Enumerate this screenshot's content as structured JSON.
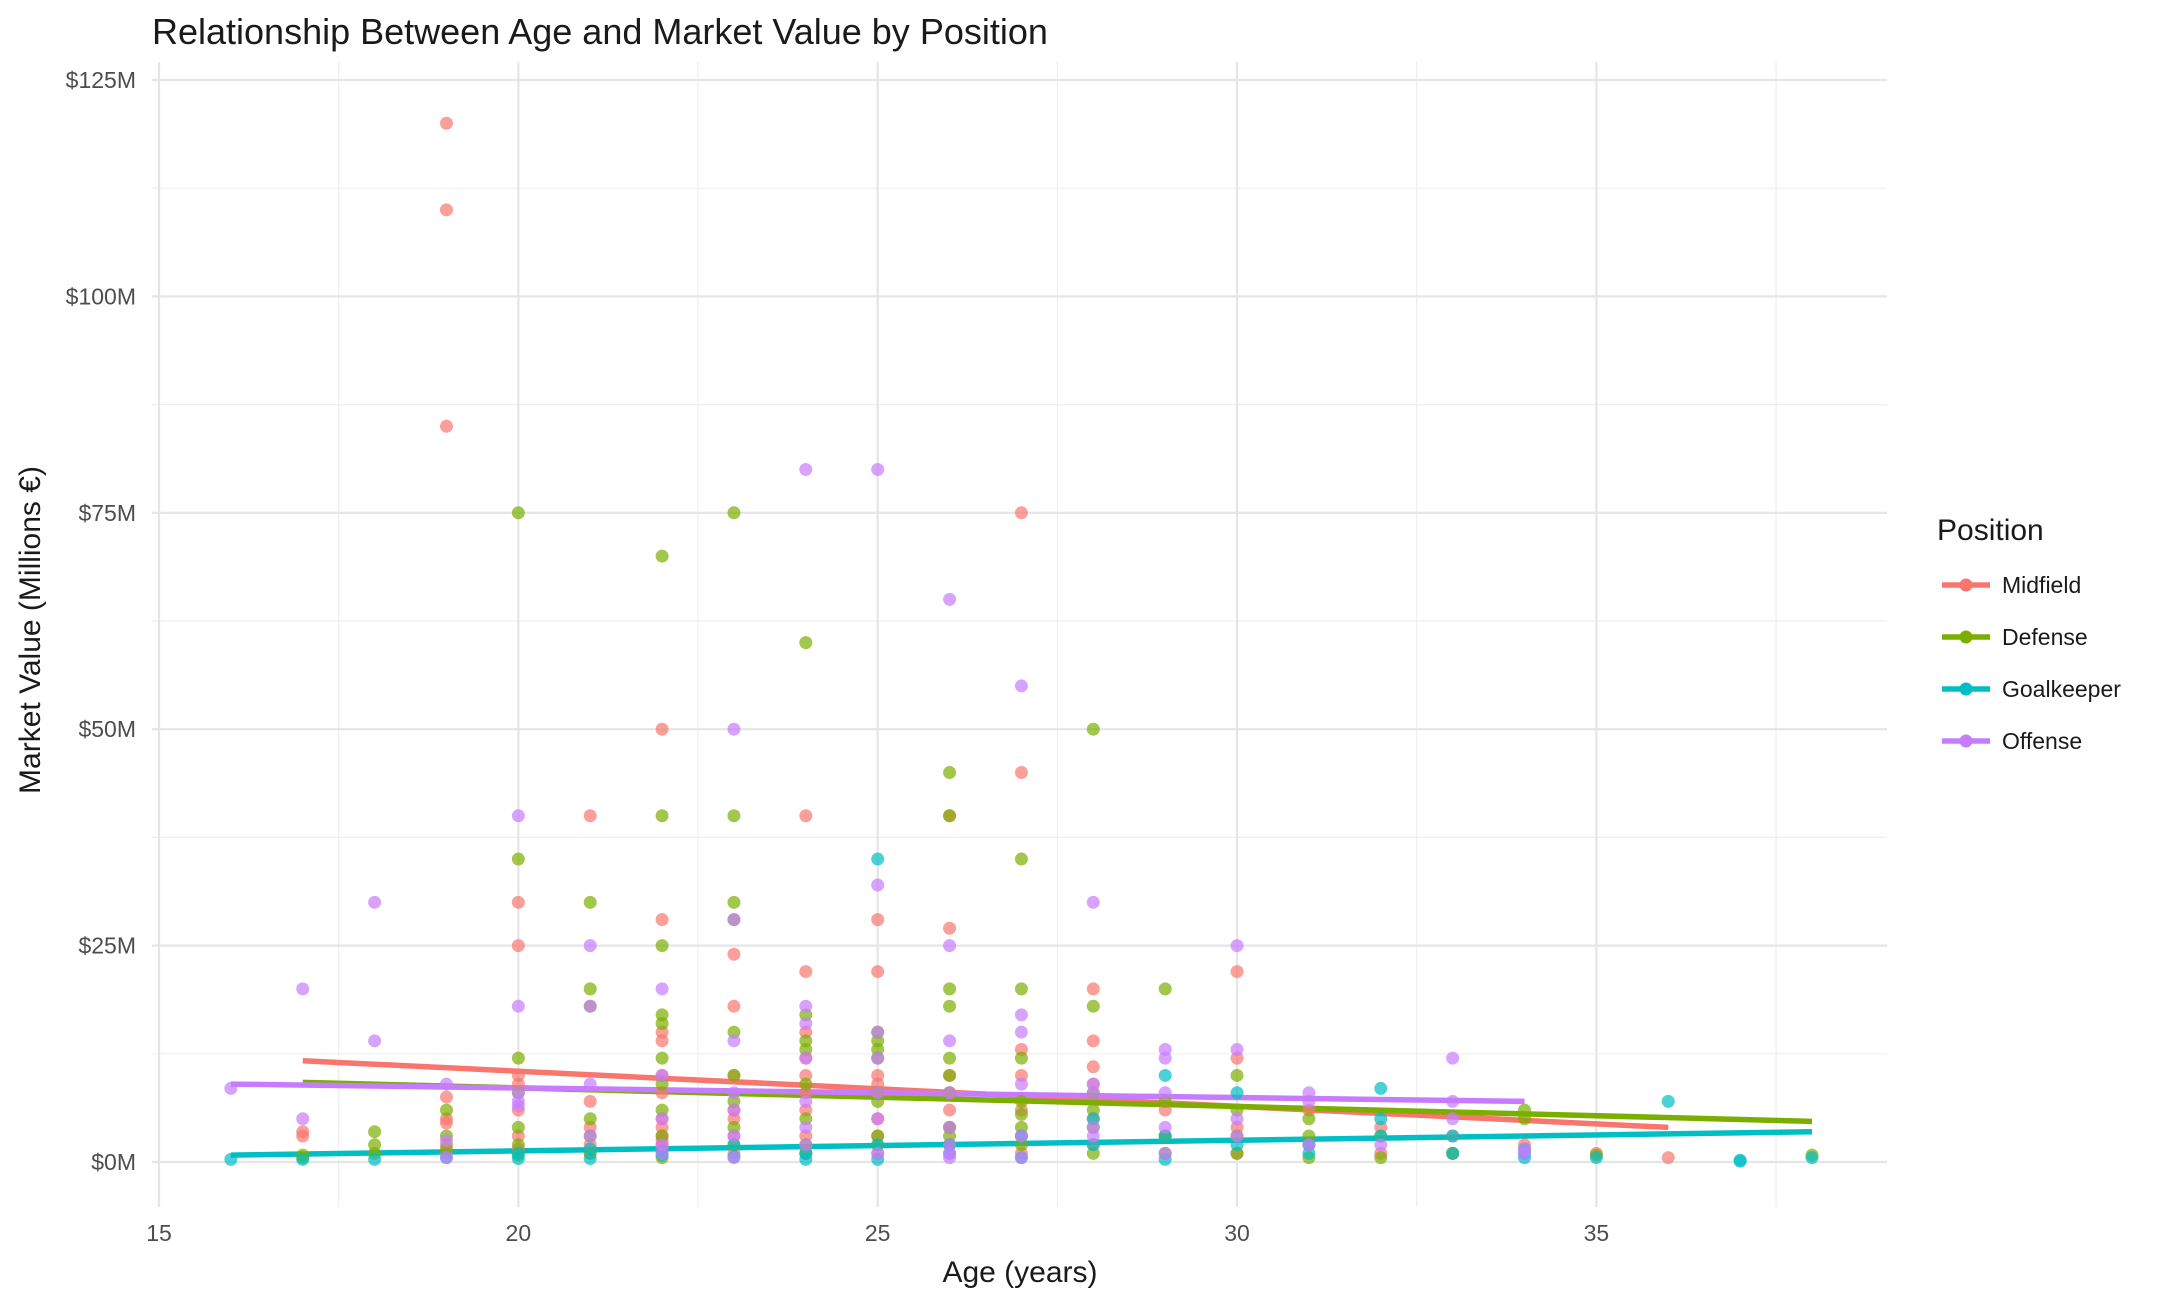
{
  "chart_data": {
    "type": "scatter",
    "title": "Relationship Between Age and Market Value by Position",
    "xlabel": "Age (years)",
    "ylabel": "Market Value (Millions €)",
    "xlim": [
      15,
      39
    ],
    "ylim": [
      -5.5,
      127
    ],
    "x_ticks": [
      15,
      20,
      25,
      30,
      35
    ],
    "x_tick_labels": [
      "15",
      "20",
      "25",
      "30",
      "35"
    ],
    "y_ticks": [
      0,
      25,
      50,
      75,
      100,
      125
    ],
    "y_tick_labels": [
      "$0M",
      "$25M",
      "$50M",
      "$75M",
      "$100M",
      "$125M"
    ],
    "grid": true,
    "legend": {
      "title": "Position",
      "placement": "right"
    },
    "series": [
      {
        "name": "Midfield",
        "color": "#F8766D",
        "trend": {
          "x": [
            17,
            36
          ],
          "y": [
            11.7,
            4.0
          ]
        },
        "points": [
          [
            17,
            3.0
          ],
          [
            17,
            3.5
          ],
          [
            19,
            120
          ],
          [
            19,
            110
          ],
          [
            19,
            85
          ],
          [
            19,
            7.5
          ],
          [
            19,
            5.0
          ],
          [
            19,
            4.5
          ],
          [
            19,
            2.0
          ],
          [
            19,
            1.0
          ],
          [
            20,
            30
          ],
          [
            20,
            25
          ],
          [
            20,
            10
          ],
          [
            20,
            9
          ],
          [
            20,
            6
          ],
          [
            20,
            3
          ],
          [
            20,
            1.5
          ],
          [
            21,
            40
          ],
          [
            21,
            7
          ],
          [
            21,
            4
          ],
          [
            21,
            2
          ],
          [
            21,
            1
          ],
          [
            22,
            50
          ],
          [
            22,
            28
          ],
          [
            22,
            15
          ],
          [
            22,
            14
          ],
          [
            22,
            10
          ],
          [
            22,
            8
          ],
          [
            22,
            5
          ],
          [
            22,
            4
          ],
          [
            22,
            3
          ],
          [
            22,
            2.5
          ],
          [
            22,
            2
          ],
          [
            22,
            1.5
          ],
          [
            23,
            24
          ],
          [
            23,
            18
          ],
          [
            23,
            10
          ],
          [
            23,
            6
          ],
          [
            23,
            5
          ],
          [
            23,
            3
          ],
          [
            23,
            1
          ],
          [
            24,
            40
          ],
          [
            24,
            22
          ],
          [
            24,
            15
          ],
          [
            24,
            12
          ],
          [
            24,
            10
          ],
          [
            24,
            8
          ],
          [
            24,
            6
          ],
          [
            24,
            3
          ],
          [
            24,
            1
          ],
          [
            25,
            28
          ],
          [
            25,
            22
          ],
          [
            25,
            10
          ],
          [
            25,
            9
          ],
          [
            25,
            8
          ],
          [
            25,
            5
          ],
          [
            25,
            3
          ],
          [
            25,
            1
          ],
          [
            26,
            40
          ],
          [
            26,
            27
          ],
          [
            26,
            10
          ],
          [
            26,
            8
          ],
          [
            26,
            6
          ],
          [
            26,
            4
          ],
          [
            26,
            2
          ],
          [
            27,
            75
          ],
          [
            27,
            45
          ],
          [
            27,
            13
          ],
          [
            27,
            10
          ],
          [
            27,
            6
          ],
          [
            27,
            3
          ],
          [
            27,
            1
          ],
          [
            28,
            20
          ],
          [
            28,
            14
          ],
          [
            28,
            11
          ],
          [
            28,
            9
          ],
          [
            28,
            5
          ],
          [
            28,
            2
          ],
          [
            29,
            6
          ],
          [
            29,
            3
          ],
          [
            30,
            22
          ],
          [
            30,
            12
          ],
          [
            30,
            4
          ],
          [
            30,
            1
          ],
          [
            31,
            6
          ],
          [
            31,
            2
          ],
          [
            32,
            4
          ],
          [
            32,
            1
          ],
          [
            33,
            3
          ],
          [
            33,
            1
          ],
          [
            34,
            2
          ],
          [
            35,
            1
          ],
          [
            36,
            0.5
          ]
        ]
      },
      {
        "name": "Defense",
        "color": "#7CAE00",
        "trend": {
          "x": [
            17,
            38
          ],
          "y": [
            9.2,
            4.7
          ]
        },
        "points": [
          [
            17,
            0.8
          ],
          [
            17,
            0.5
          ],
          [
            18,
            3.5
          ],
          [
            18,
            2.0
          ],
          [
            18,
            1.0
          ],
          [
            19,
            6
          ],
          [
            19,
            3
          ],
          [
            19,
            1.5
          ],
          [
            20,
            75
          ],
          [
            20,
            35
          ],
          [
            20,
            12
          ],
          [
            20,
            8
          ],
          [
            20,
            4
          ],
          [
            20,
            2
          ],
          [
            20,
            0.8
          ],
          [
            21,
            30
          ],
          [
            21,
            20
          ],
          [
            21,
            18
          ],
          [
            21,
            5
          ],
          [
            21,
            3
          ],
          [
            21,
            1
          ],
          [
            22,
            70
          ],
          [
            22,
            40
          ],
          [
            22,
            25
          ],
          [
            22,
            17
          ],
          [
            22,
            16
          ],
          [
            22,
            12
          ],
          [
            22,
            9
          ],
          [
            22,
            6
          ],
          [
            22,
            3
          ],
          [
            22,
            0.5
          ],
          [
            23,
            75
          ],
          [
            23,
            40
          ],
          [
            23,
            30
          ],
          [
            23,
            28
          ],
          [
            23,
            15
          ],
          [
            23,
            10
          ],
          [
            23,
            7
          ],
          [
            23,
            4
          ],
          [
            23,
            2
          ],
          [
            24,
            60
          ],
          [
            24,
            17
          ],
          [
            24,
            14
          ],
          [
            24,
            13
          ],
          [
            24,
            9
          ],
          [
            24,
            5
          ],
          [
            24,
            2
          ],
          [
            24,
            1
          ],
          [
            25,
            15
          ],
          [
            25,
            14
          ],
          [
            25,
            13
          ],
          [
            25,
            12
          ],
          [
            25,
            8
          ],
          [
            25,
            7
          ],
          [
            25,
            3
          ],
          [
            25,
            2
          ],
          [
            26,
            45
          ],
          [
            26,
            40
          ],
          [
            26,
            20
          ],
          [
            26,
            18
          ],
          [
            26,
            12
          ],
          [
            26,
            10
          ],
          [
            26,
            8
          ],
          [
            26,
            4
          ],
          [
            26,
            3
          ],
          [
            26,
            2
          ],
          [
            27,
            35
          ],
          [
            27,
            20
          ],
          [
            27,
            12
          ],
          [
            27,
            7
          ],
          [
            27,
            5.5
          ],
          [
            27,
            4
          ],
          [
            27,
            2
          ],
          [
            28,
            50
          ],
          [
            28,
            18
          ],
          [
            28,
            8
          ],
          [
            28,
            6
          ],
          [
            28,
            4
          ],
          [
            28,
            1
          ],
          [
            29,
            20
          ],
          [
            29,
            7
          ],
          [
            29,
            3
          ],
          [
            29,
            1
          ],
          [
            30,
            10
          ],
          [
            30,
            6
          ],
          [
            30,
            3
          ],
          [
            30,
            1
          ],
          [
            31,
            5
          ],
          [
            31,
            3
          ],
          [
            31,
            0.5
          ],
          [
            32,
            3
          ],
          [
            32,
            0.5
          ],
          [
            33,
            1
          ],
          [
            34,
            6
          ],
          [
            34,
            5
          ],
          [
            35,
            0.8
          ],
          [
            38,
            0.8
          ]
        ]
      },
      {
        "name": "Goalkeeper",
        "color": "#00BFC4",
        "trend": {
          "x": [
            16,
            38
          ],
          "y": [
            0.8,
            3.5
          ]
        },
        "points": [
          [
            16,
            0.3
          ],
          [
            17,
            0.3
          ],
          [
            18,
            0.3
          ],
          [
            19,
            0.5
          ],
          [
            20,
            1
          ],
          [
            20,
            0.4
          ],
          [
            21,
            0.4
          ],
          [
            21,
            1.5
          ],
          [
            22,
            0.8
          ],
          [
            22,
            1.2
          ],
          [
            23,
            0.6
          ],
          [
            23,
            2
          ],
          [
            24,
            1
          ],
          [
            24,
            0.3
          ],
          [
            25,
            35
          ],
          [
            25,
            2
          ],
          [
            25,
            0.3
          ],
          [
            26,
            2
          ],
          [
            26,
            1
          ],
          [
            27,
            3
          ],
          [
            27,
            0.5
          ],
          [
            28,
            5
          ],
          [
            28,
            2
          ],
          [
            29,
            10
          ],
          [
            29,
            3
          ],
          [
            29,
            0.3
          ],
          [
            30,
            8
          ],
          [
            30,
            2
          ],
          [
            31,
            2
          ],
          [
            31,
            1
          ],
          [
            32,
            8.5
          ],
          [
            32,
            5
          ],
          [
            32,
            3
          ],
          [
            33,
            3
          ],
          [
            33,
            1
          ],
          [
            34,
            1.5
          ],
          [
            34,
            1
          ],
          [
            34,
            0.5
          ],
          [
            35,
            0.5
          ],
          [
            36,
            7
          ],
          [
            37,
            0.2
          ],
          [
            37,
            0.1
          ],
          [
            38,
            0.5
          ]
        ]
      },
      {
        "name": "Offense",
        "color": "#C77CFF",
        "trend": {
          "x": [
            16,
            34
          ],
          "y": [
            9.0,
            7.0
          ]
        },
        "points": [
          [
            16,
            8.5
          ],
          [
            17,
            20
          ],
          [
            17,
            5
          ],
          [
            18,
            30
          ],
          [
            18,
            14
          ],
          [
            19,
            9
          ],
          [
            19,
            2.5
          ],
          [
            19,
            0.5
          ],
          [
            20,
            40
          ],
          [
            20,
            18
          ],
          [
            20,
            8
          ],
          [
            20,
            7
          ],
          [
            20,
            6.5
          ],
          [
            21,
            25
          ],
          [
            21,
            18
          ],
          [
            21,
            9
          ],
          [
            21,
            3
          ],
          [
            22,
            20
          ],
          [
            22,
            10
          ],
          [
            22,
            5
          ],
          [
            22,
            2
          ],
          [
            22,
            1
          ],
          [
            23,
            50
          ],
          [
            23,
            28
          ],
          [
            23,
            14
          ],
          [
            23,
            8
          ],
          [
            23,
            6
          ],
          [
            23,
            3
          ],
          [
            23,
            0.5
          ],
          [
            24,
            80
          ],
          [
            24,
            18
          ],
          [
            24,
            16
          ],
          [
            24,
            12
          ],
          [
            24,
            7
          ],
          [
            24,
            4
          ],
          [
            24,
            2
          ],
          [
            25,
            80
          ],
          [
            25,
            32
          ],
          [
            25,
            15
          ],
          [
            25,
            12
          ],
          [
            25,
            8
          ],
          [
            25,
            5
          ],
          [
            25,
            1
          ],
          [
            26,
            65
          ],
          [
            26,
            25
          ],
          [
            26,
            14
          ],
          [
            26,
            8
          ],
          [
            26,
            4
          ],
          [
            26,
            2
          ],
          [
            26,
            1
          ],
          [
            26,
            0.5
          ],
          [
            27,
            55
          ],
          [
            27,
            17
          ],
          [
            27,
            15
          ],
          [
            27,
            9
          ],
          [
            27,
            3
          ],
          [
            27,
            0.5
          ],
          [
            28,
            30
          ],
          [
            28,
            9
          ],
          [
            28,
            8
          ],
          [
            28,
            4
          ],
          [
            28,
            3
          ],
          [
            29,
            13
          ],
          [
            29,
            12
          ],
          [
            29,
            8
          ],
          [
            29,
            4
          ],
          [
            29,
            1
          ],
          [
            30,
            25
          ],
          [
            30,
            13
          ],
          [
            30,
            5
          ],
          [
            30,
            3
          ],
          [
            31,
            8
          ],
          [
            31,
            7
          ],
          [
            31,
            2
          ],
          [
            32,
            2
          ],
          [
            33,
            12
          ],
          [
            33,
            7
          ],
          [
            33,
            5
          ],
          [
            34,
            1.5
          ],
          [
            34,
            1
          ]
        ]
      }
    ]
  }
}
